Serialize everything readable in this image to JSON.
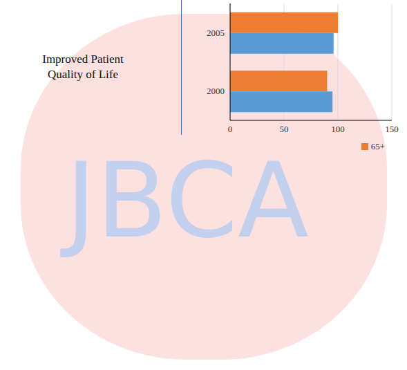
{
  "chart_data": {
    "type": "bar",
    "orientation": "horizontal",
    "categories": [
      "2005",
      "2000"
    ],
    "series": [
      {
        "name": "65+",
        "color": "#ed7d31",
        "values": [
          100,
          90
        ]
      },
      {
        "color": "#5b9bd5",
        "values": [
          96,
          95
        ]
      }
    ],
    "xlim": [
      0,
      150
    ],
    "xticks": [
      0,
      50,
      100,
      150
    ],
    "grid": true,
    "legend": "bottom",
    "annotations": [
      "Improved Patient Quality of Life",
      "JBCA"
    ]
  }
}
